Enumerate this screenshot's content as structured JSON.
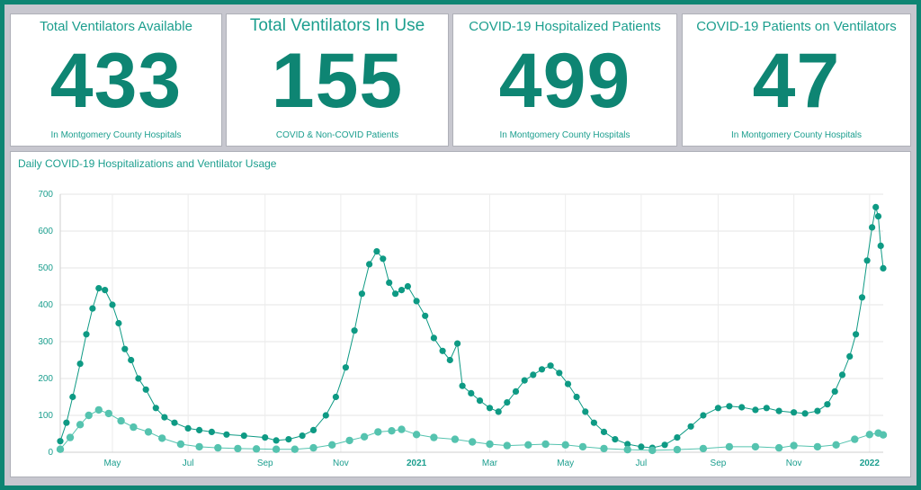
{
  "kpis": [
    {
      "title": "Total Ventilators Available",
      "value": "433",
      "subtitle": "In Montgomery County Hospitals"
    },
    {
      "title": "Total Ventilators In Use",
      "value": "155",
      "subtitle": "COVID & Non-COVID Patients"
    },
    {
      "title": "COVID-19 Hospitalized Patients",
      "value": "499",
      "subtitle": "In Montgomery County Hospitals"
    },
    {
      "title": "COVID-19 Patients on Ventilators",
      "value": "47",
      "subtitle": "In Montgomery County Hospitals"
    }
  ],
  "chart_data": {
    "type": "scatter",
    "title": "Daily COVID-19 Hospitalizations and Ventilator Usage",
    "xlabel": "",
    "ylabel": "",
    "ylim": [
      0,
      700
    ],
    "yticks": [
      0,
      100,
      200,
      300,
      400,
      500,
      600,
      700
    ],
    "xlim": [
      "2020-03-20",
      "2022-01-12"
    ],
    "xticks": [
      {
        "date": "2020-05-01",
        "label": "May",
        "bold": false
      },
      {
        "date": "2020-07-01",
        "label": "Jul",
        "bold": false
      },
      {
        "date": "2020-09-01",
        "label": "Sep",
        "bold": false
      },
      {
        "date": "2020-11-01",
        "label": "Nov",
        "bold": false
      },
      {
        "date": "2021-01-01",
        "label": "2021",
        "bold": true
      },
      {
        "date": "2021-03-01",
        "label": "Mar",
        "bold": false
      },
      {
        "date": "2021-05-01",
        "label": "May",
        "bold": false
      },
      {
        "date": "2021-07-01",
        "label": "Jul",
        "bold": false
      },
      {
        "date": "2021-09-01",
        "label": "Sep",
        "bold": false
      },
      {
        "date": "2021-11-01",
        "label": "Nov",
        "bold": false
      },
      {
        "date": "2022-01-01",
        "label": "2022",
        "bold": true
      }
    ],
    "grid": true,
    "series": [
      {
        "color": "#0e9a84",
        "points": [
          [
            "2020-03-20",
            30
          ],
          [
            "2020-03-25",
            80
          ],
          [
            "2020-03-30",
            150
          ],
          [
            "2020-04-05",
            240
          ],
          [
            "2020-04-10",
            320
          ],
          [
            "2020-04-15",
            390
          ],
          [
            "2020-04-20",
            445
          ],
          [
            "2020-04-25",
            440
          ],
          [
            "2020-05-01",
            400
          ],
          [
            "2020-05-06",
            350
          ],
          [
            "2020-05-11",
            280
          ],
          [
            "2020-05-16",
            250
          ],
          [
            "2020-05-22",
            200
          ],
          [
            "2020-05-28",
            170
          ],
          [
            "2020-06-05",
            120
          ],
          [
            "2020-06-12",
            95
          ],
          [
            "2020-06-20",
            80
          ],
          [
            "2020-07-01",
            65
          ],
          [
            "2020-07-10",
            60
          ],
          [
            "2020-07-20",
            55
          ],
          [
            "2020-08-01",
            48
          ],
          [
            "2020-08-15",
            45
          ],
          [
            "2020-09-01",
            40
          ],
          [
            "2020-09-10",
            32
          ],
          [
            "2020-09-20",
            35
          ],
          [
            "2020-10-01",
            45
          ],
          [
            "2020-10-10",
            60
          ],
          [
            "2020-10-20",
            100
          ],
          [
            "2020-10-28",
            150
          ],
          [
            "2020-11-05",
            230
          ],
          [
            "2020-11-12",
            330
          ],
          [
            "2020-11-18",
            430
          ],
          [
            "2020-11-24",
            510
          ],
          [
            "2020-11-30",
            545
          ],
          [
            "2020-12-05",
            525
          ],
          [
            "2020-12-10",
            460
          ],
          [
            "2020-12-15",
            430
          ],
          [
            "2020-12-20",
            440
          ],
          [
            "2020-12-25",
            450
          ],
          [
            "2021-01-01",
            410
          ],
          [
            "2021-01-08",
            370
          ],
          [
            "2021-01-15",
            310
          ],
          [
            "2021-01-22",
            275
          ],
          [
            "2021-01-28",
            250
          ],
          [
            "2021-02-03",
            295
          ],
          [
            "2021-02-07",
            180
          ],
          [
            "2021-02-14",
            160
          ],
          [
            "2021-02-21",
            140
          ],
          [
            "2021-03-01",
            120
          ],
          [
            "2021-03-08",
            110
          ],
          [
            "2021-03-15",
            135
          ],
          [
            "2021-03-22",
            165
          ],
          [
            "2021-03-29",
            195
          ],
          [
            "2021-04-05",
            210
          ],
          [
            "2021-04-12",
            225
          ],
          [
            "2021-04-19",
            235
          ],
          [
            "2021-04-26",
            215
          ],
          [
            "2021-05-03",
            185
          ],
          [
            "2021-05-10",
            150
          ],
          [
            "2021-05-17",
            110
          ],
          [
            "2021-05-24",
            80
          ],
          [
            "2021-06-01",
            55
          ],
          [
            "2021-06-10",
            35
          ],
          [
            "2021-06-20",
            22
          ],
          [
            "2021-07-01",
            15
          ],
          [
            "2021-07-10",
            12
          ],
          [
            "2021-07-20",
            20
          ],
          [
            "2021-07-30",
            40
          ],
          [
            "2021-08-10",
            70
          ],
          [
            "2021-08-20",
            100
          ],
          [
            "2021-09-01",
            120
          ],
          [
            "2021-09-10",
            125
          ],
          [
            "2021-09-20",
            122
          ],
          [
            "2021-10-01",
            115
          ],
          [
            "2021-10-10",
            120
          ],
          [
            "2021-10-20",
            112
          ],
          [
            "2021-11-01",
            108
          ],
          [
            "2021-11-10",
            105
          ],
          [
            "2021-11-20",
            112
          ],
          [
            "2021-11-28",
            130
          ],
          [
            "2021-12-04",
            165
          ],
          [
            "2021-12-10",
            210
          ],
          [
            "2021-12-16",
            260
          ],
          [
            "2021-12-21",
            320
          ],
          [
            "2021-12-26",
            420
          ],
          [
            "2021-12-30",
            520
          ],
          [
            "2022-01-03",
            610
          ],
          [
            "2022-01-06",
            665
          ],
          [
            "2022-01-08",
            640
          ],
          [
            "2022-01-10",
            560
          ],
          [
            "2022-01-12",
            499
          ]
        ]
      },
      {
        "color": "#55c3af",
        "points": [
          [
            "2020-03-20",
            8
          ],
          [
            "2020-03-28",
            40
          ],
          [
            "2020-04-05",
            75
          ],
          [
            "2020-04-12",
            100
          ],
          [
            "2020-04-20",
            115
          ],
          [
            "2020-04-28",
            105
          ],
          [
            "2020-05-08",
            85
          ],
          [
            "2020-05-18",
            68
          ],
          [
            "2020-05-30",
            55
          ],
          [
            "2020-06-10",
            38
          ],
          [
            "2020-06-25",
            22
          ],
          [
            "2020-07-10",
            15
          ],
          [
            "2020-07-25",
            12
          ],
          [
            "2020-08-10",
            10
          ],
          [
            "2020-08-25",
            9
          ],
          [
            "2020-09-10",
            8
          ],
          [
            "2020-09-25",
            8
          ],
          [
            "2020-10-10",
            12
          ],
          [
            "2020-10-25",
            20
          ],
          [
            "2020-11-08",
            32
          ],
          [
            "2020-11-20",
            42
          ],
          [
            "2020-12-01",
            55
          ],
          [
            "2020-12-12",
            58
          ],
          [
            "2020-12-20",
            62
          ],
          [
            "2021-01-01",
            48
          ],
          [
            "2021-01-15",
            40
          ],
          [
            "2021-02-01",
            35
          ],
          [
            "2021-02-15",
            28
          ],
          [
            "2021-03-01",
            22
          ],
          [
            "2021-03-15",
            18
          ],
          [
            "2021-04-01",
            20
          ],
          [
            "2021-04-15",
            22
          ],
          [
            "2021-05-01",
            20
          ],
          [
            "2021-05-15",
            15
          ],
          [
            "2021-06-01",
            10
          ],
          [
            "2021-06-20",
            7
          ],
          [
            "2021-07-10",
            5
          ],
          [
            "2021-07-30",
            7
          ],
          [
            "2021-08-20",
            10
          ],
          [
            "2021-09-10",
            15
          ],
          [
            "2021-10-01",
            15
          ],
          [
            "2021-10-20",
            12
          ],
          [
            "2021-11-01",
            18
          ],
          [
            "2021-11-20",
            15
          ],
          [
            "2021-12-05",
            20
          ],
          [
            "2021-12-20",
            35
          ],
          [
            "2022-01-01",
            48
          ],
          [
            "2022-01-08",
            52
          ],
          [
            "2022-01-12",
            47
          ]
        ]
      }
    ]
  }
}
